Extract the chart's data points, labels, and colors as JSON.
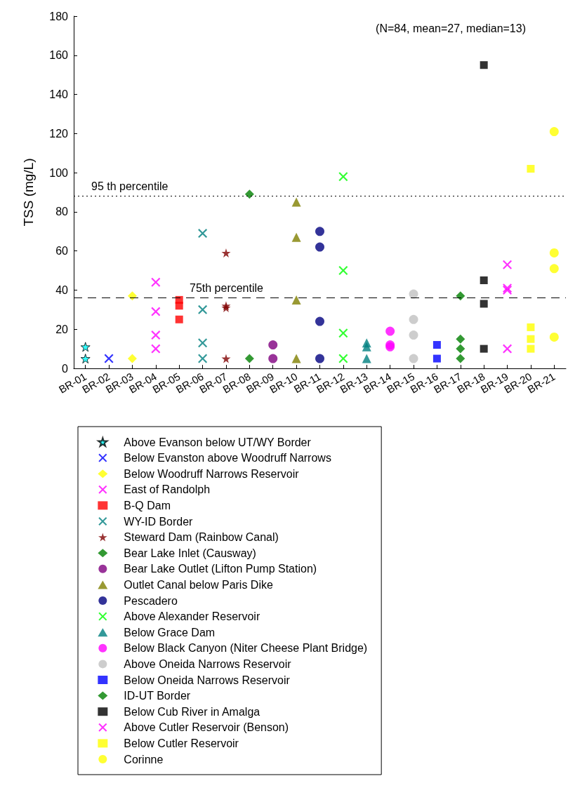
{
  "chart_data": {
    "type": "scatter",
    "ylabel": "TSS (mg/L)",
    "categories": [
      "BR-01",
      "BR-02",
      "BR-03",
      "BR-04",
      "BR-05",
      "BR-06",
      "BR-07",
      "BR-08",
      "BR-09",
      "BR-10",
      "BR-11",
      "BR-12",
      "BR-13",
      "BR-14",
      "BR-15",
      "BR-16",
      "BR-17",
      "BR-18",
      "BR-19",
      "BR-20",
      "BR-21"
    ],
    "ylim": [
      0,
      180
    ],
    "yticks": [
      0,
      20,
      40,
      60,
      80,
      100,
      120,
      140,
      160,
      180
    ],
    "grid": false,
    "legend": "bottom",
    "annotations": [
      "(N=84, mean=27, median=13)"
    ],
    "ref_lines": [
      {
        "axis": "y",
        "value": 88,
        "label": "95 th percentile",
        "color": "#000000",
        "line_style": "dotted"
      },
      {
        "axis": "y",
        "value": 36,
        "label": "75th percentile",
        "color": "#000000",
        "line_style": "dashed"
      }
    ],
    "series": [
      {
        "name": "Above Evanson below UT/WY Border",
        "color": "#00ffff",
        "marker": "star",
        "x": [
          "BR-01",
          "BR-01"
        ],
        "values": [
          11,
          5
        ]
      },
      {
        "name": "Below Evanston above Woodruff Narrows",
        "color": "#0000ff",
        "marker": "cross",
        "x": [
          "BR-02"
        ],
        "values": [
          5
        ]
      },
      {
        "name": "Below Woodruff Narrows Reservoir",
        "color": "#ffff00",
        "marker": "diamond",
        "x": [
          "BR-03",
          "BR-03"
        ],
        "values": [
          37,
          5
        ]
      },
      {
        "name": "East of Randolph",
        "color": "#ff00ff",
        "marker": "cross",
        "x": [
          "BR-04",
          "BR-04",
          "BR-04",
          "BR-04"
        ],
        "values": [
          44,
          29,
          17,
          10
        ]
      },
      {
        "name": "B-Q Dam",
        "color": "#ff0000",
        "marker": "square",
        "x": [
          "BR-05",
          "BR-05",
          "BR-05"
        ],
        "values": [
          35,
          32,
          25
        ]
      },
      {
        "name": "WY-ID Border",
        "color": "#008080",
        "marker": "cross",
        "x": [
          "BR-06",
          "BR-06",
          "BR-06",
          "BR-06"
        ],
        "values": [
          69,
          30,
          13,
          5
        ]
      },
      {
        "name": "Steward Dam (Rainbow Canal)",
        "color": "#800000",
        "marker": "star",
        "x": [
          "BR-07",
          "BR-07",
          "BR-07",
          "BR-07"
        ],
        "values": [
          59,
          32,
          31,
          5
        ]
      },
      {
        "name": "Bear Lake Inlet (Causway)",
        "color": "#008000",
        "marker": "diamond",
        "x": [
          "BR-08",
          "BR-08"
        ],
        "values": [
          89,
          5
        ]
      },
      {
        "name": "Bear Lake Outlet (Lifton Pump Station)",
        "color": "#800080",
        "marker": "circle",
        "x": [
          "BR-09",
          "BR-09"
        ],
        "values": [
          12,
          5
        ]
      },
      {
        "name": "Outlet Canal below Paris Dike",
        "color": "#808000",
        "marker": "triangle",
        "x": [
          "BR-10",
          "BR-10",
          "BR-10",
          "BR-10"
        ],
        "values": [
          85,
          67,
          35,
          5
        ]
      },
      {
        "name": "Pescadero",
        "color": "#000080",
        "marker": "circle",
        "x": [
          "BR-11",
          "BR-11",
          "BR-11",
          "BR-11"
        ],
        "values": [
          70,
          62,
          24,
          5
        ]
      },
      {
        "name": "Above Alexander Reservoir",
        "color": "#00ff00",
        "marker": "cross",
        "x": [
          "BR-12",
          "BR-12",
          "BR-12",
          "BR-12"
        ],
        "values": [
          98,
          50,
          18,
          5
        ]
      },
      {
        "name": "Below Grace Dam",
        "color": "#008080",
        "marker": "triangle",
        "x": [
          "BR-13",
          "BR-13",
          "BR-13"
        ],
        "values": [
          13,
          11,
          5
        ]
      },
      {
        "name": "Below Black Canyon (Niter Cheese Plant Bridge)",
        "color": "#ff00ff",
        "marker": "circle",
        "x": [
          "BR-14",
          "BR-14",
          "BR-14"
        ],
        "values": [
          19,
          12,
          11
        ]
      },
      {
        "name": "Above Oneida Narrows Reservoir",
        "color": "#c0c0c0",
        "marker": "circle",
        "x": [
          "BR-15",
          "BR-15",
          "BR-15",
          "BR-15"
        ],
        "values": [
          38,
          25,
          17,
          5
        ]
      },
      {
        "name": "Below Oneida Narrows Reservoir",
        "color": "#0000ff",
        "marker": "square",
        "x": [
          "BR-16",
          "BR-16"
        ],
        "values": [
          12,
          5
        ]
      },
      {
        "name": "ID-UT Border",
        "color": "#008000",
        "marker": "diamond",
        "x": [
          "BR-17",
          "BR-17",
          "BR-17",
          "BR-17"
        ],
        "values": [
          37,
          15,
          10,
          5
        ]
      },
      {
        "name": "Below Cub River in Amalga",
        "color": "#000000",
        "marker": "square",
        "x": [
          "BR-18",
          "BR-18",
          "BR-18",
          "BR-18"
        ],
        "values": [
          155,
          45,
          33,
          10
        ]
      },
      {
        "name": "Above Cutler Reservoir (Benson)",
        "color": "#ff00ff",
        "marker": "cross",
        "x": [
          "BR-19",
          "BR-19",
          "BR-19",
          "BR-19"
        ],
        "values": [
          53,
          41,
          40,
          10
        ]
      },
      {
        "name": "Below Cutler Reservoir",
        "color": "#ffff00",
        "marker": "square",
        "x": [
          "BR-20",
          "BR-20",
          "BR-20",
          "BR-20"
        ],
        "values": [
          102,
          21,
          15,
          10
        ]
      },
      {
        "name": "Corinne",
        "color": "#ffff00",
        "marker": "circle",
        "x": [
          "BR-21",
          "BR-21",
          "BR-21",
          "BR-21"
        ],
        "values": [
          121,
          59,
          51,
          16
        ]
      }
    ]
  }
}
